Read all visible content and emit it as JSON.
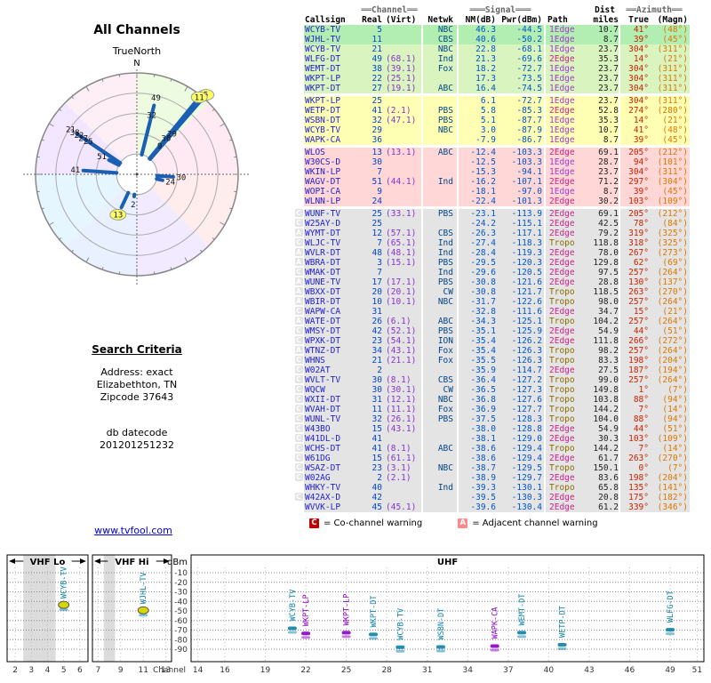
{
  "left": {
    "title": "All Channels",
    "compass_label": "TrueNorth",
    "search": {
      "heading": "Search Criteria",
      "line1": "Address: exact",
      "line2": "Elizabethton, TN",
      "line3": "Zipcode 37643",
      "datecode_label": "db datecode",
      "datecode": "201201251232"
    },
    "link": "www.tvfool.com"
  },
  "radar": {
    "north": "N",
    "wedges": [
      "#edfbe0",
      "#ffe9f2",
      "#ffecec",
      "#f2ebff",
      "#e9f0ff",
      "#e6f6ff",
      "#f3e7ff",
      "#fdeff5"
    ],
    "markers": [
      {
        "label": "5",
        "az": 41,
        "len": 0.96,
        "hl": true
      },
      {
        "label": "11",
        "az": 39,
        "len": 0.9,
        "hl": true
      },
      {
        "label": "21",
        "az": 304,
        "len": 0.71
      },
      {
        "label": "49",
        "az": 14,
        "len": 0.7
      },
      {
        "label": "38",
        "az": 304,
        "len": 0.66
      },
      {
        "label": "22",
        "az": 304,
        "len": 0.61
      },
      {
        "label": "27",
        "az": 304,
        "len": 0.56
      },
      {
        "label": "25",
        "az": 304,
        "len": 0.5
      },
      {
        "label": "41",
        "az": 274,
        "len": 0.53
      },
      {
        "label": "32",
        "az": 14,
        "len": 0.52
      },
      {
        "label": "29",
        "az": 41,
        "len": 0.45
      },
      {
        "label": "36",
        "az": 39,
        "len": 0.38
      },
      {
        "label": "13",
        "az": 205,
        "len": 0.36,
        "hl": true
      },
      {
        "label": "30",
        "az": 94,
        "len": 0.36
      },
      {
        "label": "51",
        "az": 297,
        "len": 0.31
      },
      {
        "label": "9",
        "az": 39,
        "len": 0.28
      },
      {
        "label": "24",
        "az": 103,
        "len": 0.26
      },
      {
        "label": "2",
        "az": 187,
        "len": 0.22
      }
    ]
  },
  "table": {
    "headers": {
      "callsign": "Callsign",
      "channel_group": "══Channel══",
      "real": "Real",
      "virt": "(Virt)",
      "netwk": "Netwk",
      "signal_group": "═══Signal═══",
      "nm": "NM(dB)",
      "pwr": "Pwr(dBm)",
      "path": "Path",
      "dist_group": "Dist",
      "miles": "miles",
      "azimuth_group": "══Azimuth══",
      "true": "True",
      "magn": "(Magn)"
    },
    "rows": [
      {
        "call": "WCYB-TV",
        "real": "5",
        "virt": "",
        "net": "NBC",
        "nm": "46.3",
        "pwr": "-44.5",
        "path": "1Edge",
        "dist": "10.7",
        "t": "41°",
        "m": "(48°)",
        "band": "g2"
      },
      {
        "call": "WJHL-TV",
        "real": "11",
        "virt": "",
        "net": "CBS",
        "n m": "",
        "nm": "40.6",
        "pwr": "-50.2",
        "path": "1Edge",
        "dist": "8.7",
        "t": "39°",
        "m": "(45°)",
        "band": "g2"
      },
      {
        "call": "WCYB-TV",
        "real": "21",
        "virt": "",
        "net": "NBC",
        "nm": "22.8",
        "pwr": "-68.1",
        "path": "1Edge",
        "dist": "23.7",
        "t": "304°",
        "m": "(311°)",
        "band": "g1"
      },
      {
        "call": "WLFG-DT",
        "real": "49",
        "virt": "(68.1)",
        "net": "Ind",
        "nm": "21.3",
        "pwr": "-69.6",
        "path": "2Edge",
        "dist": "35.3",
        "t": "14°",
        "m": "(21°)",
        "band": "g1"
      },
      {
        "call": "WEMT-DT",
        "real": "38",
        "virt": "(39.1)",
        "net": "Fox",
        "nm": "18.2",
        "pwr": "-72.7",
        "path": "1Edge",
        "dist": "23.7",
        "t": "304°",
        "m": "(311°)",
        "band": "g1"
      },
      {
        "call": "WKPT-LP",
        "real": "22",
        "virt": "(25.1)",
        "net": "",
        "nm": "17.3",
        "pwr": "-73.5",
        "path": "1Edge",
        "dist": "23.7",
        "t": "304°",
        "m": "(311°)",
        "band": "g1"
      },
      {
        "call": "WKPT-DT",
        "real": "27",
        "virt": "(19.1)",
        "net": "ABC",
        "nm": "16.4",
        "pwr": "-74.5",
        "path": "1Edge",
        "dist": "23.7",
        "t": "304°",
        "m": "(311°)",
        "band": "g1"
      },
      {
        "call": "WKPT-LP",
        "real": "25",
        "virt": "",
        "net": "",
        "nm": "6.1",
        "pwr": "-72.7",
        "path": "1Edge",
        "dist": "23.7",
        "t": "304°",
        "m": "(311°)",
        "band": "y",
        "gap": true
      },
      {
        "call": "WETP-DT",
        "real": "41",
        "virt": "(2.1)",
        "net": "PBS",
        "nm": "5.8",
        "pwr": "-85.3",
        "path": "2Edge",
        "dist": "52.8",
        "t": "274°",
        "m": "(280°)",
        "band": "y"
      },
      {
        "call": "WSBN-DT",
        "real": "32",
        "virt": "(47.1)",
        "net": "PBS",
        "nm": "5.1",
        "pwr": "-87.7",
        "path": "1Edge",
        "dist": "35.3",
        "t": "14°",
        "m": "(21°)",
        "band": "y"
      },
      {
        "call": "WCYB-TV",
        "real": "29",
        "virt": "",
        "net": "NBC",
        "nm": "3.0",
        "pwr": "-87.9",
        "path": "1Edge",
        "dist": "10.7",
        "t": "41°",
        "m": "(48°)",
        "band": "y"
      },
      {
        "call": "WAPK-CA",
        "real": "36",
        "virt": "",
        "net": "",
        "nm": "-7.9",
        "pwr": "-86.7",
        "path": "1Edge",
        "dist": "8.7",
        "t": "39°",
        "m": "(45°)",
        "band": "y"
      },
      {
        "call": "WLOS",
        "real": "13",
        "virt": "(13.1)",
        "net": "ABC",
        "nm": "-12.4",
        "pwr": "-103.3",
        "path": "2Edge",
        "dist": "69.1",
        "t": "205°",
        "m": "(212°)",
        "band": "p",
        "gap": true
      },
      {
        "call": "W30CS-D",
        "real": "30",
        "virt": "",
        "net": "",
        "nm": "-12.5",
        "pwr": "-103.3",
        "path": "1Edge",
        "dist": "28.7",
        "t": "94°",
        "m": "(101°)",
        "band": "p"
      },
      {
        "call": "WKIN-LP",
        "real": "7",
        "virt": "",
        "net": "",
        "nm": "-15.3",
        "pwr": "-94.1",
        "path": "1Edge",
        "dist": "23.7",
        "t": "304°",
        "m": "(311°)",
        "band": "p"
      },
      {
        "call": "WAGV-DT",
        "real": "51",
        "virt": "(44.1)",
        "net": "Ind",
        "nm": "-16.2",
        "pwr": "-107.1",
        "path": "2Edge",
        "dist": "71.2",
        "t": "297°",
        "m": "(304°)",
        "band": "p"
      },
      {
        "call": "WOPI-CA",
        "real": "9",
        "virt": "",
        "net": "",
        "nm": "-18.1",
        "pwr": "-97.0",
        "path": "1Edge",
        "dist": "8.7",
        "t": "39°",
        "m": "(45°)",
        "band": "p"
      },
      {
        "call": "WLNN-LP",
        "real": "24",
        "virt": "",
        "net": "",
        "nm": "-22.4",
        "pwr": "-101.3",
        "path": "2Edge",
        "dist": "30.2",
        "t": "103°",
        "m": "(109°)",
        "band": "p"
      },
      {
        "call": "WUNF-TV",
        "real": "25",
        "virt": "(33.1)",
        "net": "PBS",
        "nm": "-23.1",
        "pwr": "-113.9",
        "path": "2Edge",
        "dist": "69.1",
        "t": "205°",
        "m": "(212°)",
        "band": "gr",
        "gap": true,
        "warn": "C"
      },
      {
        "call": "W25AY-D",
        "real": "25",
        "virt": "",
        "net": "",
        "nm": "-24.2",
        "pwr": "-115.1",
        "path": "2Edge",
        "dist": "42.5",
        "t": "78°",
        "m": "(84°)",
        "band": "gr",
        "warn": "C"
      },
      {
        "call": "WYMT-DT",
        "real": "12",
        "virt": "(57.1)",
        "net": "CBS",
        "nm": "-26.3",
        "pwr": "-117.1",
        "path": "2Edge",
        "dist": "79.2",
        "t": "319°",
        "m": "(325°)",
        "band": "gr",
        "warn": "A"
      },
      {
        "call": "WLJC-TV",
        "real": "7",
        "virt": "(65.1)",
        "net": "Ind",
        "nm": "-27.4",
        "pwr": "-118.3",
        "path": "Tropo",
        "dist": "118.8",
        "t": "318°",
        "m": "(325°)",
        "band": "gr",
        "warn": "C"
      },
      {
        "call": "WVLR-DT",
        "real": "48",
        "virt": "(48.1)",
        "net": "Ind",
        "nm": "-28.4",
        "pwr": "-119.3",
        "path": "2Edge",
        "dist": "78.0",
        "t": "267°",
        "m": "(273°)",
        "band": "gr",
        "warn": "A"
      },
      {
        "call": "WBRA-DT",
        "real": "3",
        "virt": "(15.1)",
        "net": "PBS",
        "nm": "-29.5",
        "pwr": "-120.3",
        "path": "2Edge",
        "dist": "129.8",
        "t": "62°",
        "m": "(69°)",
        "band": "gr",
        "warn": "A"
      },
      {
        "call": "WMAK-DT",
        "real": "7",
        "virt": "",
        "net": "Ind",
        "nm": "-29.6",
        "pwr": "-120.5",
        "path": "2Edge",
        "dist": "97.5",
        "t": "257°",
        "m": "(264°)",
        "band": "gr",
        "warn": "C"
      },
      {
        "call": "WUNE-TV",
        "real": "17",
        "virt": "(17.1)",
        "net": "PBS",
        "nm": "-30.8",
        "pwr": "-121.6",
        "path": "2Edge",
        "dist": "28.8",
        "t": "130°",
        "m": "(137°)",
        "band": "gr",
        "warn": "A"
      },
      {
        "call": "WBXX-DT",
        "real": "20",
        "virt": "(20.1)",
        "net": "CW",
        "nm": "-30.8",
        "pwr": "-121.7",
        "path": "Tropo",
        "dist": "118.5",
        "t": "263°",
        "m": "(270°)",
        "band": "gr",
        "warn": "A"
      },
      {
        "call": "WBIR-DT",
        "real": "10",
        "virt": "(10.1)",
        "net": "NBC",
        "nm": "-31.7",
        "pwr": "-122.6",
        "path": "Tropo",
        "dist": "98.0",
        "t": "257°",
        "m": "(264°)",
        "band": "gr",
        "warn": "A"
      },
      {
        "call": "WAPW-CA",
        "real": "31",
        "virt": "",
        "net": "",
        "nm": "-32.8",
        "pwr": "-111.6",
        "path": "2Edge",
        "dist": "34.7",
        "t": "15°",
        "m": "(21°)",
        "band": "gr",
        "warn": "C"
      },
      {
        "call": "WATE-DT",
        "real": "26",
        "virt": "(6.1)",
        "net": "ABC",
        "nm": "-34.3",
        "pwr": "-125.1",
        "path": "Tropo",
        "dist": "104.2",
        "t": "257°",
        "m": "(264°)",
        "band": "gr",
        "warn": "A"
      },
      {
        "call": "WMSY-DT",
        "real": "42",
        "virt": "(52.1)",
        "net": "PBS",
        "nm": "-35.1",
        "pwr": "-125.9",
        "path": "2Edge",
        "dist": "54.9",
        "t": "44°",
        "m": "(51°)",
        "band": "gr",
        "warn": "C"
      },
      {
        "call": "WPXK-DT",
        "real": "23",
        "virt": "(54.1)",
        "net": "ION",
        "nm": "-35.4",
        "pwr": "-126.2",
        "path": "2Edge",
        "dist": "111.8",
        "t": "266°",
        "m": "(272°)",
        "band": "gr",
        "warn": "C"
      },
      {
        "call": "WTNZ-DT",
        "real": "34",
        "virt": "(43.1)",
        "net": "Fox",
        "nm": "-35.4",
        "pwr": "-126.3",
        "path": "Tropo",
        "dist": "98.2",
        "t": "257°",
        "m": "(264°)",
        "band": "gr",
        "warn": "A"
      },
      {
        "call": "WHNS",
        "real": "21",
        "virt": "(21.1)",
        "net": "Fox",
        "nm": "-35.5",
        "pwr": "-126.3",
        "path": "Tropo",
        "dist": "83.3",
        "t": "198°",
        "m": "(204°)",
        "band": "gr",
        "warn": "C"
      },
      {
        "call": "W02AT",
        "real": "2",
        "virt": "",
        "net": "",
        "nm": "-35.9",
        "pwr": "-114.7",
        "path": "2Edge",
        "dist": "27.5",
        "t": "187°",
        "m": "(194°)",
        "band": "gr",
        "warn": "C"
      },
      {
        "call": "WVLT-TV",
        "real": "30",
        "virt": "(8.1)",
        "net": "CBS",
        "nm": "-36.4",
        "pwr": "-127.2",
        "path": "Tropo",
        "dist": "99.0",
        "t": "257°",
        "m": "(264°)",
        "band": "gr",
        "warn": "C"
      },
      {
        "call": "WQCW",
        "real": "30",
        "virt": "(30.1)",
        "net": "CW",
        "nm": "-36.5",
        "pwr": "-127.3",
        "path": "Tropo",
        "dist": "149.8",
        "t": "1°",
        "m": "(7°)",
        "band": "gr",
        "warn": "C"
      },
      {
        "call": "WXII-DT",
        "real": "31",
        "virt": "(12.1)",
        "net": "NBC",
        "nm": "-36.8",
        "pwr": "-127.6",
        "path": "Tropo",
        "dist": "103.8",
        "t": "88°",
        "m": "(94°)",
        "band": "gr",
        "warn": "C"
      },
      {
        "call": "WVAH-DT",
        "real": "11",
        "virt": "(11.1)",
        "net": "Fox",
        "nm": "-36.9",
        "pwr": "-127.7",
        "path": "Tropo",
        "dist": "144.2",
        "t": "7°",
        "m": "(14°)",
        "band": "gr",
        "warn": "C"
      },
      {
        "call": "WUNL-TV",
        "real": "32",
        "virt": "(26.1)",
        "net": "PBS",
        "nm": "-37.5",
        "pwr": "-128.3",
        "path": "Tropo",
        "dist": "104.0",
        "t": "88°",
        "m": "(94°)",
        "band": "gr",
        "warn": "C"
      },
      {
        "call": "W43BO",
        "real": "15",
        "virt": "(43.1)",
        "net": "",
        "nm": "-38.0",
        "pwr": "-128.8",
        "path": "2Edge",
        "dist": "54.9",
        "t": "44°",
        "m": "(51°)",
        "band": "gr",
        "warn": "C"
      },
      {
        "call": "W41DL-D",
        "real": "41",
        "virt": "",
        "net": "",
        "nm": "-38.1",
        "pwr": "-129.0",
        "path": "2Edge",
        "dist": "30.3",
        "t": "103°",
        "m": "(109°)",
        "band": "gr",
        "warn": "C"
      },
      {
        "call": "WCHS-DT",
        "real": "41",
        "virt": "(8.1)",
        "net": "ABC",
        "nm": "-38.6",
        "pwr": "-129.4",
        "path": "Tropo",
        "dist": "144.2",
        "t": "7°",
        "m": "(14°)",
        "band": "gr",
        "warn": "C"
      },
      {
        "call": "W61DG",
        "real": "15",
        "virt": "(61.1)",
        "net": "",
        "nm": "-38.6",
        "pwr": "-129.4",
        "path": "2Edge",
        "dist": "61.7",
        "t": "263°",
        "m": "(270°)",
        "band": "gr",
        "warn": "C"
      },
      {
        "call": "WSAZ-DT",
        "real": "23",
        "virt": "(3.1)",
        "net": "NBC",
        "nm": "-38.7",
        "pwr": "-129.5",
        "path": "Tropo",
        "dist": "150.1",
        "t": "0°",
        "m": "(7°)",
        "band": "gr",
        "warn": "C"
      },
      {
        "call": "W02AG",
        "real": "2",
        "virt": "(2.1)",
        "net": "",
        "nm": "-38.9",
        "pwr": "-129.7",
        "path": "2Edge",
        "dist": "83.6",
        "t": "198°",
        "m": "(204°)",
        "band": "gr",
        "warn": "C"
      },
      {
        "call": "WHKY-TV",
        "real": "40",
        "virt": "",
        "net": "Ind",
        "nm": "-39.3",
        "pwr": "-130.1",
        "path": "Tropo",
        "dist": "65.8",
        "t": "135°",
        "m": "(141°)",
        "band": "gr"
      },
      {
        "call": "W42AX-D",
        "real": "42",
        "virt": "",
        "net": "",
        "nm": "-39.5",
        "pwr": "-130.3",
        "path": "2Edge",
        "dist": "20.8",
        "t": "175°",
        "m": "(182°)",
        "band": "gr",
        "warn": "C"
      },
      {
        "call": "WVVK-LP",
        "real": "45",
        "virt": "(45.1)",
        "net": "",
        "nm": "-39.6",
        "pwr": "-130.4",
        "path": "2Edge",
        "dist": "61.2",
        "t": "339°",
        "m": "(346°)",
        "band": "gr"
      }
    ]
  },
  "legend": {
    "c_symbol": "C",
    "c_text": "= Co-channel warning",
    "a_symbol": "A",
    "a_text": "= Adjacent channel warning"
  },
  "chart_data": {
    "type": "scatter",
    "title": "",
    "xlabel": "Channel",
    "ylabel": "dBm",
    "ylim": [
      -95,
      -5
    ],
    "yticks": [
      -10,
      -20,
      -30,
      -40,
      -50,
      -60,
      -70,
      -80,
      -90
    ],
    "bands": [
      {
        "name": "VHF Lo",
        "arrows": true,
        "c0": 2,
        "c1": 6,
        "ticks": [
          2,
          3,
          4,
          5,
          6
        ]
      },
      {
        "name": "VHF Hi",
        "arrows": true,
        "c0": 7,
        "c1": 13,
        "ticks": [
          7,
          9,
          11,
          13
        ]
      },
      {
        "name": "UHF",
        "arrows": false,
        "c0": 14,
        "c1": 51,
        "ticks": [
          14,
          16,
          19,
          22,
          25,
          28,
          31,
          34,
          37,
          40,
          43,
          46,
          49,
          51
        ]
      }
    ],
    "stripes": [
      {
        "band": "VHF Lo",
        "ch": 3
      },
      {
        "band": "VHF Lo",
        "ch": 4
      },
      {
        "band": "VHF Hi",
        "ch": 8
      }
    ],
    "points": [
      {
        "callsign": "WCYB-TV",
        "channel": 5,
        "dbm": -44.5,
        "band": "VHF Lo",
        "color": "#0b82a8",
        "hl": true
      },
      {
        "callsign": "WJHL-TV",
        "channel": 11,
        "dbm": -50.2,
        "band": "VHF Hi",
        "color": "#0b82a8",
        "hl": true
      },
      {
        "callsign": "WCYB-TV",
        "channel": 21,
        "dbm": -68.1,
        "band": "UHF",
        "color": "#0b82a8"
      },
      {
        "callsign": "WKPT-LP",
        "channel": 22,
        "dbm": -73.5,
        "band": "UHF",
        "color": "#8a00c0"
      },
      {
        "callsign": "WKPT-LP",
        "channel": 25,
        "dbm": -72.7,
        "band": "UHF",
        "color": "#8a00c0"
      },
      {
        "callsign": "WKPT-DT",
        "channel": 27,
        "dbm": -74.5,
        "band": "UHF",
        "color": "#0b82a8"
      },
      {
        "callsign": "WCYB-TV",
        "channel": 29,
        "dbm": -87.9,
        "band": "UHF",
        "color": "#0b82a8"
      },
      {
        "callsign": "WSBN-DT",
        "channel": 32,
        "dbm": -87.7,
        "band": "UHF",
        "color": "#0b82a8"
      },
      {
        "callsign": "WAPK-CA",
        "channel": 36,
        "dbm": -86.7,
        "band": "UHF",
        "color": "#8a00c0"
      },
      {
        "callsign": "WEMT-DT",
        "channel": 38,
        "dbm": -72.7,
        "band": "UHF",
        "color": "#0b82a8"
      },
      {
        "callsign": "WETP-DT",
        "channel": 41,
        "dbm": -85.3,
        "band": "UHF",
        "color": "#0b82a8"
      },
      {
        "callsign": "WLFG-DT",
        "channel": 49,
        "dbm": -69.6,
        "band": "UHF",
        "color": "#0b82a8"
      }
    ]
  }
}
